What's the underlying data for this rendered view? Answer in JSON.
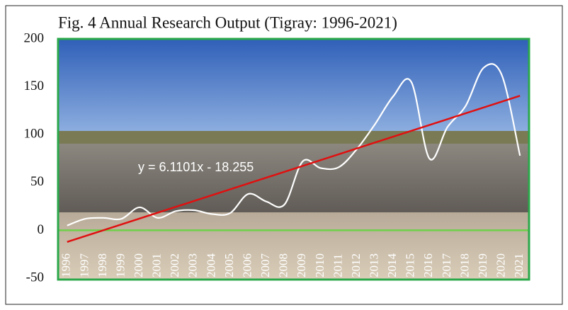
{
  "chart_data": {
    "type": "line",
    "title": "Fig. 4 Annual Research Output (Tigray: 1996-2021)",
    "categories": [
      "1996",
      "1997",
      "1998",
      "1999",
      "2000",
      "2001",
      "2002",
      "2003",
      "2004",
      "2005",
      "2006",
      "2007",
      "2008",
      "2009",
      "2010",
      "2011",
      "2012",
      "2013",
      "2014",
      "2015",
      "2016",
      "2017",
      "2018",
      "2019",
      "2020",
      "2021"
    ],
    "series": [
      {
        "color": "#ffffff",
        "values": [
          5,
          12,
          13,
          12,
          24,
          13,
          20,
          21,
          17,
          18,
          38,
          30,
          27,
          72,
          65,
          66,
          85,
          111,
          140,
          155,
          75,
          108,
          130,
          170,
          162,
          78
        ]
      }
    ],
    "trendline": {
      "slope": 6.1101,
      "intercept": -18.255,
      "label": "y = 6.1101x - 18.255",
      "color": "#e01010"
    },
    "ylim": [
      -50,
      200
    ],
    "yticks": [
      -50,
      0,
      50,
      100,
      150,
      200
    ],
    "zero_line_color": "#6fd04a",
    "smooth": true
  }
}
